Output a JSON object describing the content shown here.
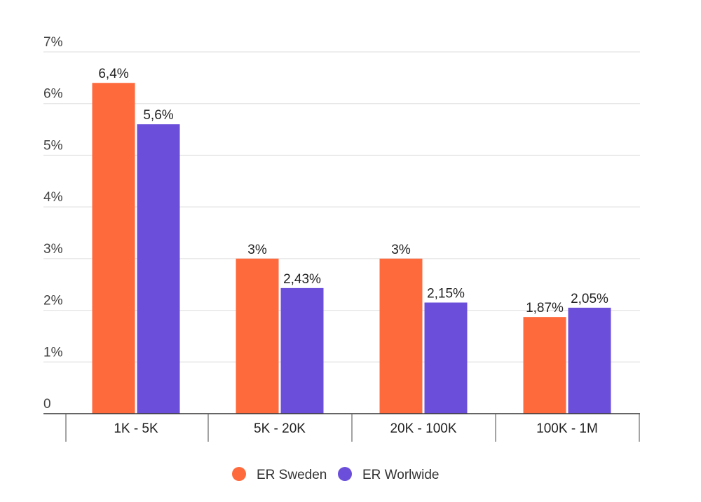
{
  "chart_data": {
    "type": "bar",
    "categories": [
      "1K - 5K",
      "5K - 20K",
      "20K - 100K",
      "100K - 1M"
    ],
    "series": [
      {
        "name": "ER Sweden",
        "color": "#FF6A3D",
        "values": [
          6.4,
          3,
          3,
          1.87
        ],
        "labels": [
          "6,4%",
          "3%",
          "3%",
          "1,87%"
        ]
      },
      {
        "name": "ER Worlwide",
        "color": "#6B4FDB",
        "values": [
          5.6,
          2.43,
          2.15,
          2.05
        ],
        "labels": [
          "5,6%",
          "2,43%",
          "2,15%",
          "2,05%"
        ]
      }
    ],
    "ylim": [
      0,
      7
    ],
    "yticks": [
      {
        "value": 0,
        "label": "0"
      },
      {
        "value": 1,
        "label": "1%"
      },
      {
        "value": 2,
        "label": "2%"
      },
      {
        "value": 3,
        "label": "3%"
      },
      {
        "value": 4,
        "label": "4%"
      },
      {
        "value": 5,
        "label": "5%"
      },
      {
        "value": 6,
        "label": "6%"
      },
      {
        "value": 7,
        "label": "7%"
      }
    ],
    "grid": true,
    "legend": "bottom-center",
    "title": "",
    "xlabel": "",
    "ylabel": ""
  }
}
